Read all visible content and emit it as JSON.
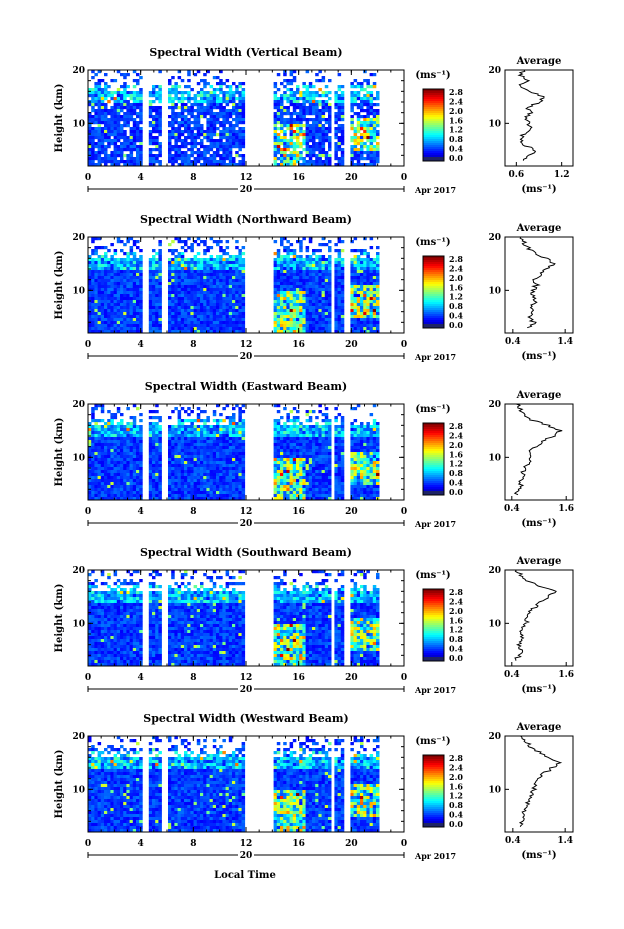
{
  "figure": {
    "xlabel": "Local Time",
    "date_label": "Apr 2017",
    "day_label": "20",
    "ylabel": "Height (km)",
    "avg_title": "Average",
    "units": "(ms⁻¹)",
    "avg_xlabel": "(ms⁻¹)"
  },
  "chart_data": [
    {
      "type": "heatmap",
      "title": "Spectral Width (Vertical Beam)",
      "ylabel": "Height (km)",
      "xticks": [
        "0",
        "4",
        "8",
        "12",
        "16",
        "20",
        "0"
      ],
      "yticks": [
        "20",
        "10"
      ],
      "xlim": [
        0,
        24
      ],
      "ylim": [
        2,
        20
      ],
      "colorbar": {
        "label": "(ms⁻¹)",
        "ticks": [
          "2.8",
          "2.4",
          "2.0",
          "1.6",
          "1.2",
          "0.8",
          "0.4",
          "0.0"
        ],
        "range": [
          0.0,
          2.8
        ]
      },
      "data_gaps_hours": [
        [
          4.2,
          4.6
        ],
        [
          5.6,
          6.0
        ],
        [
          12.0,
          14.0
        ],
        [
          18.4,
          18.7
        ],
        [
          19.5,
          20.0
        ]
      ],
      "average_profile": {
        "title": "Average",
        "xlabel": "(ms⁻¹)",
        "xticks": [
          "0.6",
          "1.2"
        ],
        "xlim": [
          0.45,
          1.35
        ],
        "yticks": [
          "20",
          "10"
        ],
        "ylim": [
          2,
          20
        ],
        "height_km": [
          3,
          4,
          5,
          6,
          7,
          8,
          9,
          10,
          11,
          12,
          13,
          14,
          15,
          16,
          17,
          18,
          19,
          20
        ],
        "values": [
          0.7,
          0.78,
          0.85,
          0.7,
          0.65,
          0.7,
          0.8,
          0.75,
          0.72,
          0.8,
          0.75,
          0.9,
          0.95,
          0.8,
          0.65,
          0.75,
          0.65,
          0.7
        ]
      }
    },
    {
      "type": "heatmap",
      "title": "Spectral Width (Northward Beam)",
      "ylabel": "Height (km)",
      "xticks": [
        "0",
        "4",
        "8",
        "12",
        "16",
        "20",
        "0"
      ],
      "yticks": [
        "20",
        "10"
      ],
      "xlim": [
        0,
        24
      ],
      "ylim": [
        2,
        20
      ],
      "colorbar": {
        "label": "(ms⁻¹)",
        "ticks": [
          "2.8",
          "2.4",
          "2.0",
          "1.6",
          "1.2",
          "0.8",
          "0.4",
          "0.0"
        ],
        "range": [
          0.0,
          2.8
        ]
      },
      "data_gaps_hours": [
        [
          4.2,
          4.6
        ],
        [
          5.6,
          6.0
        ],
        [
          12.0,
          14.0
        ],
        [
          18.4,
          18.7
        ],
        [
          19.5,
          20.0
        ]
      ],
      "average_profile": {
        "title": "Average",
        "xlabel": "(ms⁻¹)",
        "xticks": [
          "0.4",
          "1.4"
        ],
        "xlim": [
          0.25,
          1.55
        ],
        "yticks": [
          "20",
          "10"
        ],
        "ylim": [
          2,
          20
        ],
        "height_km": [
          3,
          4,
          5,
          6,
          7,
          8,
          9,
          10,
          11,
          12,
          13,
          14,
          15,
          16,
          17,
          18,
          19,
          20
        ],
        "values": [
          0.7,
          0.8,
          0.72,
          0.8,
          0.75,
          0.85,
          0.8,
          0.78,
          0.85,
          0.8,
          0.95,
          1.05,
          1.2,
          1.05,
          0.8,
          0.7,
          0.6,
          0.55
        ]
      }
    },
    {
      "type": "heatmap",
      "title": "Spectral Width (Eastward Beam)",
      "ylabel": "Height (km)",
      "xticks": [
        "0",
        "4",
        "8",
        "12",
        "16",
        "20",
        "0"
      ],
      "yticks": [
        "20",
        "10"
      ],
      "xlim": [
        0,
        24
      ],
      "ylim": [
        2,
        20
      ],
      "colorbar": {
        "label": "(ms⁻¹)",
        "ticks": [
          "2.8",
          "2.4",
          "2.0",
          "1.6",
          "1.2",
          "0.8",
          "0.4",
          "0.0"
        ],
        "range": [
          0.0,
          2.8
        ]
      },
      "data_gaps_hours": [
        [
          4.2,
          4.6
        ],
        [
          5.6,
          6.0
        ],
        [
          12.0,
          14.0
        ],
        [
          18.4,
          18.7
        ],
        [
          19.5,
          20.0
        ]
      ],
      "average_profile": {
        "title": "Average",
        "xlabel": "(ms⁻¹)",
        "xticks": [
          "0.4",
          "1.6"
        ],
        "xlim": [
          0.25,
          1.75
        ],
        "yticks": [
          "20",
          "10"
        ],
        "ylim": [
          2,
          20
        ],
        "height_km": [
          3,
          4,
          5,
          6,
          7,
          8,
          9,
          10,
          11,
          12,
          13,
          14,
          15,
          16,
          17,
          18,
          19,
          20
        ],
        "values": [
          0.5,
          0.55,
          0.6,
          0.6,
          0.65,
          0.7,
          0.75,
          0.8,
          0.8,
          0.9,
          1.1,
          1.3,
          1.5,
          1.2,
          0.85,
          0.7,
          0.6,
          0.5
        ]
      }
    },
    {
      "type": "heatmap",
      "title": "Spectral Width (Southward Beam)",
      "ylabel": "Height (km)",
      "xticks": [
        "0",
        "4",
        "8",
        "12",
        "16",
        "20",
        "0"
      ],
      "yticks": [
        "20",
        "10"
      ],
      "xlim": [
        0,
        24
      ],
      "ylim": [
        2,
        20
      ],
      "colorbar": {
        "label": "(ms⁻¹)",
        "ticks": [
          "2.8",
          "2.4",
          "2.0",
          "1.6",
          "1.2",
          "0.8",
          "0.4",
          "0.0"
        ],
        "range": [
          0.0,
          2.8
        ]
      },
      "data_gaps_hours": [
        [
          4.2,
          4.6
        ],
        [
          5.6,
          6.0
        ],
        [
          12.0,
          14.0
        ],
        [
          18.4,
          18.7
        ],
        [
          19.5,
          20.0
        ]
      ],
      "average_profile": {
        "title": "Average",
        "xlabel": "(ms⁻¹)",
        "xticks": [
          "0.4",
          "1.6"
        ],
        "xlim": [
          0.25,
          1.75
        ],
        "yticks": [
          "20",
          "10"
        ],
        "ylim": [
          2,
          20
        ],
        "height_km": [
          3,
          4,
          5,
          6,
          7,
          8,
          9,
          10,
          11,
          12,
          13,
          14,
          15,
          16,
          17,
          18,
          19,
          20
        ],
        "values": [
          0.5,
          0.55,
          0.6,
          0.55,
          0.6,
          0.65,
          0.6,
          0.7,
          0.75,
          0.8,
          0.9,
          1.0,
          1.2,
          1.4,
          1.0,
          0.75,
          0.6,
          0.5
        ]
      }
    },
    {
      "type": "heatmap",
      "title": "Spectral Width (Westward Beam)",
      "ylabel": "Height (km)",
      "xticks": [
        "0",
        "4",
        "8",
        "12",
        "16",
        "20",
        "0"
      ],
      "yticks": [
        "20",
        "10"
      ],
      "xlim": [
        0,
        24
      ],
      "ylim": [
        2,
        20
      ],
      "colorbar": {
        "label": "(ms⁻¹)",
        "ticks": [
          "2.8",
          "2.4",
          "2.0",
          "1.6",
          "1.2",
          "0.8",
          "0.4",
          "0.0"
        ],
        "range": [
          0.0,
          2.8
        ]
      },
      "data_gaps_hours": [
        [
          4.2,
          4.6
        ],
        [
          5.6,
          6.0
        ],
        [
          12.0,
          14.0
        ],
        [
          18.4,
          18.7
        ],
        [
          19.5,
          20.0
        ]
      ],
      "average_profile": {
        "title": "Average",
        "xlabel": "(ms⁻¹)",
        "xticks": [
          "0.4",
          "1.4"
        ],
        "xlim": [
          0.25,
          1.55
        ],
        "yticks": [
          "20",
          "10"
        ],
        "ylim": [
          2,
          20
        ],
        "height_km": [
          3,
          4,
          5,
          6,
          7,
          8,
          9,
          10,
          11,
          12,
          13,
          14,
          15,
          16,
          17,
          18,
          19,
          20
        ],
        "values": [
          0.55,
          0.6,
          0.65,
          0.6,
          0.65,
          0.7,
          0.75,
          0.8,
          0.85,
          0.9,
          1.0,
          1.15,
          1.3,
          1.1,
          0.9,
          0.75,
          0.65,
          0.55
        ]
      }
    }
  ]
}
